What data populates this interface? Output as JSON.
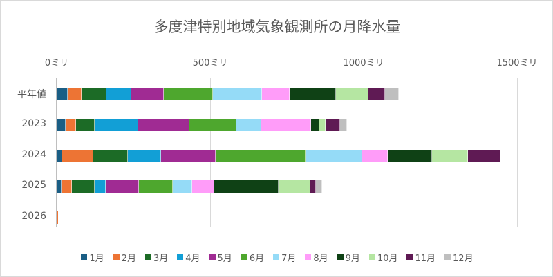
{
  "chart_data": {
    "type": "bar",
    "orientation": "horizontal",
    "stacked": true,
    "title": "多度津特別地域気象観測所の月降水量",
    "xlabel": "",
    "ylabel": "",
    "xlim": [
      0,
      1500
    ],
    "x_ticks": [
      "0ミリ",
      "500ミリ",
      "1000ミリ",
      "1500ミリ"
    ],
    "x_tick_values": [
      0,
      500,
      1000,
      1500
    ],
    "grid": true,
    "legend_position": "bottom",
    "categories": [
      "平年値",
      "2023",
      "2024",
      "2025",
      "2026"
    ],
    "series": [
      {
        "name": "1月",
        "color": "#1a5e85",
        "values": [
          35,
          30,
          19,
          15,
          1
        ]
      },
      {
        "name": "2月",
        "color": "#ed7434",
        "values": [
          47,
          32,
          101,
          34,
          3
        ]
      },
      {
        "name": "3月",
        "color": "#1c6b26",
        "values": [
          81,
          61,
          113,
          74,
          0
        ]
      },
      {
        "name": "4月",
        "color": "#129fd6",
        "values": [
          81,
          142,
          106,
          38,
          0
        ]
      },
      {
        "name": "5月",
        "color": "#a02b93",
        "values": [
          106,
          167,
          180,
          108,
          0
        ]
      },
      {
        "name": "6月",
        "color": "#4ea72e",
        "values": [
          160,
          153,
          291,
          110,
          0
        ]
      },
      {
        "name": "7月",
        "color": "#95dbf7",
        "values": [
          160,
          81,
          185,
          63,
          0
        ]
      },
      {
        "name": "8月",
        "color": "#ff9cf9",
        "values": [
          90,
          162,
          83,
          72,
          0
        ]
      },
      {
        "name": "9月",
        "color": "#0f4115",
        "values": [
          151,
          29,
          146,
          209,
          0
        ]
      },
      {
        "name": "10月",
        "color": "#b5e6a2",
        "values": [
          104,
          20,
          117,
          104,
          0
        ]
      },
      {
        "name": "11月",
        "color": "#5f1a54",
        "values": [
          56,
          47,
          104,
          18,
          0
        ]
      },
      {
        "name": "12月",
        "color": "#bfbfbf",
        "values": [
          45,
          23,
          0,
          20,
          0
        ]
      }
    ]
  }
}
